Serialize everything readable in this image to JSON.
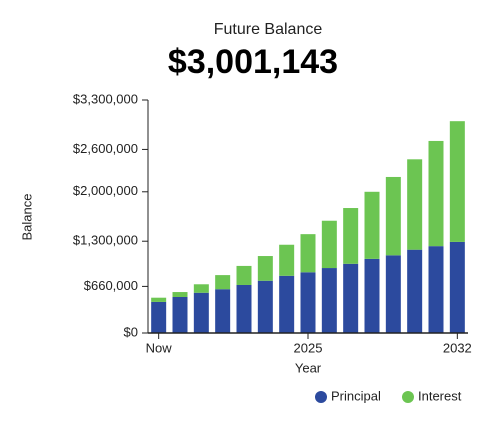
{
  "chart_data": {
    "type": "stacked_bar",
    "title": "Future Balance",
    "headline": "$3,001,143",
    "x_label": "Year",
    "y_label": "Balance",
    "categories": [
      "Now",
      null,
      null,
      null,
      null,
      null,
      null,
      "2025",
      null,
      null,
      null,
      null,
      null,
      null,
      "2032"
    ],
    "series": [
      {
        "name": "Principal",
        "color": "#2c4a9e",
        "values": [
          440000,
          510000,
          570000,
          620000,
          680000,
          740000,
          810000,
          860000,
          920000,
          980000,
          1050000,
          1100000,
          1180000,
          1230000,
          1290000
        ]
      },
      {
        "name": "Interest",
        "color": "#6cc552",
        "values": [
          60000,
          70000,
          120000,
          200000,
          270000,
          350000,
          440000,
          540000,
          670000,
          790000,
          950000,
          1110000,
          1280000,
          1490000,
          1710000
        ]
      }
    ],
    "ylim": [
      0,
      3300000
    ],
    "yticks": [
      {
        "value": 0,
        "label": "$0"
      },
      {
        "value": 660000,
        "label": "$660,000"
      },
      {
        "value": 1300000,
        "label": "$1,300,000"
      },
      {
        "value": 2000000,
        "label": "$2,000,000"
      },
      {
        "value": 2600000,
        "label": "$2,600,000"
      },
      {
        "value": 3300000,
        "label": "$3,300,000"
      }
    ],
    "legend": "bottom-right"
  }
}
